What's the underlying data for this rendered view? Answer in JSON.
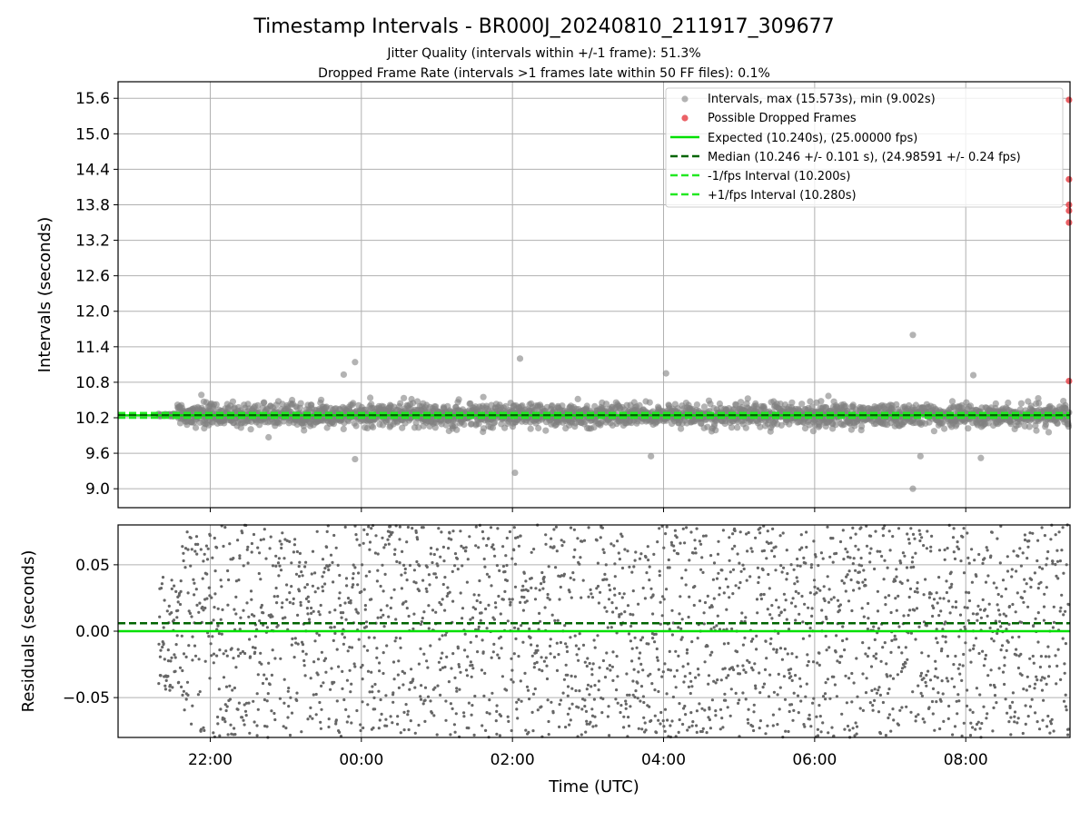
{
  "figure": {
    "title": "Timestamp Intervals - BR000J_20240810_211917_309677",
    "subtitle_1": "Jitter Quality (intervals within +/-1 frame): 51.3%",
    "subtitle_2": "Dropped Frame Rate (intervals >1 frames late within 50 FF files): 0.1%",
    "xlabel": "Time (UTC)"
  },
  "colors": {
    "interval_points": "#808080",
    "dropped_points": "#e8474c",
    "expected_line": "#00e000",
    "median_line": "#006400",
    "interval_bounds": "#22e822",
    "residual_points": "#666666",
    "grid": "#b0b0b0"
  },
  "chart_data": [
    {
      "type": "scatter",
      "ylabel": "Intervals (seconds)",
      "x_range_hours": [
        20.78,
        33.38
      ],
      "x_ticks": [
        "22:00",
        "00:00",
        "02:00",
        "04:00",
        "06:00",
        "08:00"
      ],
      "ylim": [
        8.68,
        15.88
      ],
      "y_ticks": [
        "9.0",
        "9.6",
        "10.2",
        "10.8",
        "11.4",
        "12.0",
        "12.6",
        "13.2",
        "13.8",
        "14.4",
        "15.0",
        "15.6"
      ],
      "grid": true,
      "legend_placement": "upper right",
      "legend": [
        "Intervals, max (15.573s), min (9.002s)",
        "Possible Dropped Frames",
        "Expected (10.240s), (25.00000 fps)",
        "Median (10.246 +/- 0.101 s), (24.98591 +/- 0.24 fps)",
        "-1/fps Interval (10.200s)",
        "+1/fps Interval (10.280s)"
      ],
      "reference_lines": {
        "expected": 10.24,
        "median": 10.246,
        "minus_1fps": 10.2,
        "plus_1fps": 10.28
      },
      "interval_summary": {
        "max": 15.573,
        "min": 9.002,
        "count_approx": 2600,
        "time_start": "21:19",
        "time_end": "09:22",
        "scatter_std": 0.101
      },
      "notable_points": [
        {
          "time": "07:18",
          "interval": 11.6
        },
        {
          "time": "07:18",
          "interval": 9.0
        },
        {
          "time": "02:06",
          "interval": 11.2
        },
        {
          "time": "02:02",
          "interval": 9.27
        },
        {
          "time": "23:55",
          "interval": 11.14
        },
        {
          "time": "23:46",
          "interval": 10.93
        },
        {
          "time": "23:55",
          "interval": 9.5
        },
        {
          "time": "04:02",
          "interval": 10.95
        },
        {
          "time": "08:06",
          "interval": 10.92
        },
        {
          "time": "03:50",
          "interval": 9.55
        },
        {
          "time": "07:24",
          "interval": 9.55
        },
        {
          "time": "08:12",
          "interval": 9.52
        }
      ],
      "dropped_frames": [
        {
          "time": "09:22",
          "interval": 15.573
        },
        {
          "time": "09:22",
          "interval": 14.23
        },
        {
          "time": "09:22",
          "interval": 13.8
        },
        {
          "time": "09:22",
          "interval": 13.7
        },
        {
          "time": "09:22",
          "interval": 13.5
        },
        {
          "time": "09:22",
          "interval": 10.82
        }
      ]
    },
    {
      "type": "scatter",
      "ylabel": "Residuals (seconds)",
      "ylim": [
        -0.08,
        0.08
      ],
      "y_ticks": [
        "−0.05",
        "0.00",
        "0.05"
      ],
      "grid": true,
      "reference_lines": {
        "expected": 0.0,
        "median": 0.006
      },
      "residual_summary": {
        "distribution": "approximately uniform within the visible range",
        "count_approx": 2600,
        "time_start": "21:19",
        "time_end": "09:22"
      }
    }
  ]
}
